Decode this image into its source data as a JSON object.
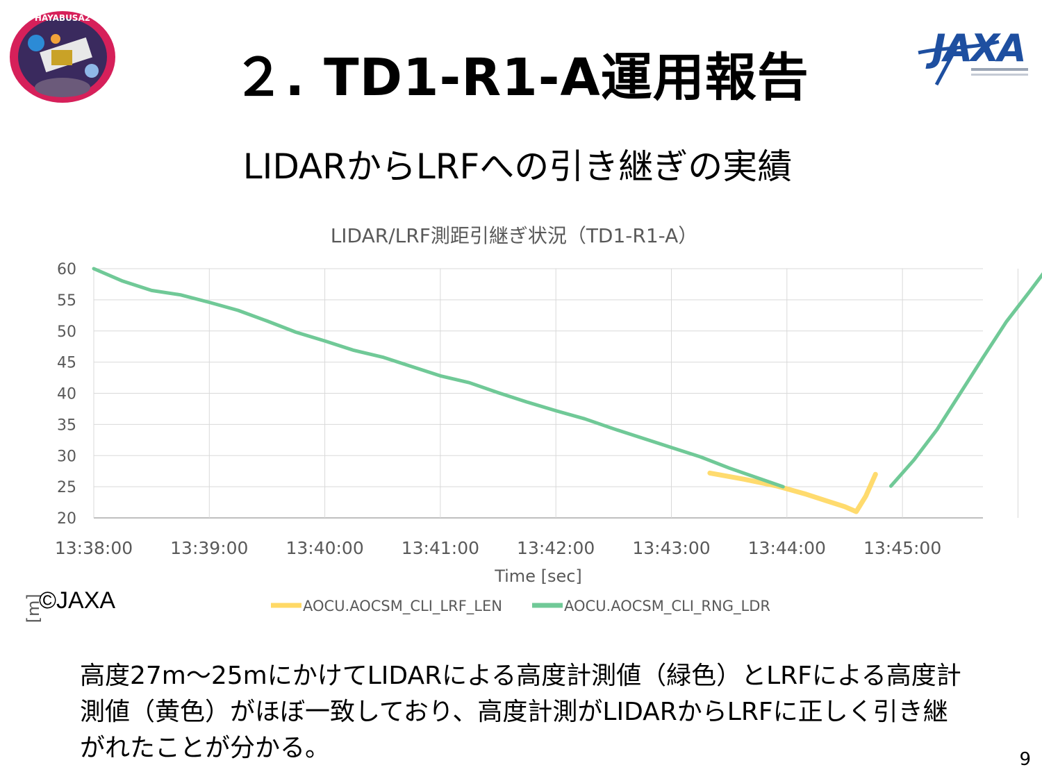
{
  "header": {
    "title": "２. TD1-R1-A運用報告",
    "subtitle": "LIDARからLRFへの引き継ぎの実績",
    "patch_text": "HAYABUSA2",
    "logo_text": "JAXA"
  },
  "chart_data": {
    "type": "line",
    "title": "LIDAR/LRF測距引継ぎ状況（TD1-R1-A）",
    "xlabel": "Time [sec]",
    "ylabel": "Altitude [m]",
    "ylim": [
      20,
      60
    ],
    "yticks": [
      "20",
      "25",
      "30",
      "35",
      "40",
      "45",
      "50",
      "55",
      "60"
    ],
    "xticks": [
      "13:38:00",
      "13:39:00",
      "13:40:00",
      "13:41:00",
      "13:42:00",
      "13:43:00",
      "13:44:00",
      "13:45:00"
    ],
    "grid": true,
    "legend_position": "bottom",
    "series": [
      {
        "name": "AOCU.AOCSM_CLI_LRF_LEN",
        "color": "#ffd966",
        "points": [
          [
            "13:43:20",
            27.2
          ],
          [
            "13:43:38",
            26.2
          ],
          [
            "13:43:55",
            25.1
          ],
          [
            "13:44:10",
            23.8
          ],
          [
            "13:44:20",
            22.8
          ],
          [
            "13:44:30",
            21.8
          ],
          [
            "13:44:36",
            21.0
          ],
          [
            "13:44:41",
            23.5
          ],
          [
            "13:44:46",
            27.0
          ]
        ]
      },
      {
        "name": "AOCU.AOCSM_CLI_RNG_LDR",
        "color": "#70c997",
        "points": [
          [
            "13:38:00",
            60.0
          ],
          [
            "13:38:15",
            58.0
          ],
          [
            "13:38:30",
            56.5
          ],
          [
            "13:38:45",
            55.8
          ],
          [
            "13:39:00",
            54.6
          ],
          [
            "13:39:15",
            53.3
          ],
          [
            "13:39:30",
            51.6
          ],
          [
            "13:39:45",
            49.8
          ],
          [
            "13:40:00",
            48.4
          ],
          [
            "13:40:15",
            46.9
          ],
          [
            "13:40:30",
            45.8
          ],
          [
            "13:40:45",
            44.3
          ],
          [
            "13:41:00",
            42.8
          ],
          [
            "13:41:15",
            41.7
          ],
          [
            "13:41:30",
            40.1
          ],
          [
            "13:41:45",
            38.6
          ],
          [
            "13:42:00",
            37.2
          ],
          [
            "13:42:15",
            35.9
          ],
          [
            "13:42:30",
            34.3
          ],
          [
            "13:42:45",
            32.8
          ],
          [
            "13:43:00",
            31.3
          ],
          [
            "13:43:15",
            29.8
          ],
          [
            "13:43:30",
            28.0
          ],
          [
            "13:43:45",
            26.4
          ],
          [
            "13:43:58",
            25.0
          ]
        ]
      },
      {
        "name": "",
        "color": "#70c997",
        "points": [
          [
            "13:44:54",
            25.1
          ],
          [
            "13:45:06",
            29.3
          ],
          [
            "13:45:18",
            34.2
          ],
          [
            "13:45:30",
            40.0
          ],
          [
            "13:45:42",
            45.8
          ],
          [
            "13:45:54",
            51.5
          ],
          [
            "13:46:06",
            56.3
          ],
          [
            "13:46:15",
            60.0
          ]
        ]
      }
    ]
  },
  "copyright": "©JAXA",
  "body": {
    "text": "高度27m～25mにかけてLIDARによる高度計測値（緑色）とLRFによる高度計測値（黄色）がほぼ一致しており、高度計測がLIDARからLRFに正しく引き継がれたことが分かる。"
  },
  "page_number": "9"
}
